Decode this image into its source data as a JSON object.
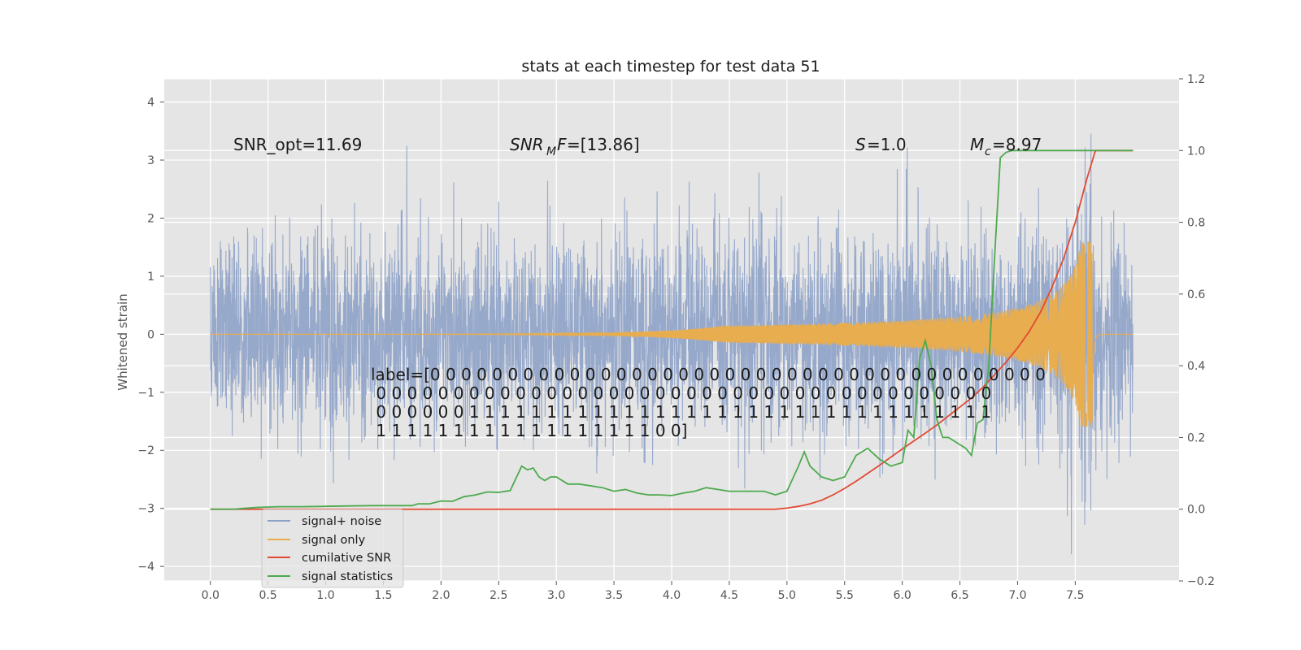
{
  "chart_data": {
    "type": "line",
    "title": "stats at each timestep for test data 51",
    "ylabel": "Whitened strain",
    "xlabel": "",
    "xlim": [
      -0.4,
      8.4
    ],
    "ylim": [
      -4.25,
      4.4
    ],
    "y2lim": [
      -0.2,
      1.2
    ],
    "x_ticks": [
      0.0,
      0.5,
      1.0,
      1.5,
      2.0,
      2.5,
      3.0,
      3.5,
      4.0,
      4.5,
      5.0,
      5.5,
      6.0,
      6.5,
      7.0,
      7.5
    ],
    "y_ticks": [
      4,
      3,
      2,
      1,
      0,
      -1,
      -2,
      -3,
      -4
    ],
    "y2_ticks": [
      1.2,
      1.0,
      0.8,
      0.6,
      0.4,
      0.2,
      0.0,
      -0.2
    ],
    "x_tick_labels": [
      "0.0",
      "0.5",
      "1.0",
      "1.5",
      "2.0",
      "2.5",
      "3.0",
      "3.5",
      "4.0",
      "4.5",
      "5.0",
      "5.5",
      "6.0",
      "6.5",
      "7.0",
      "7.5"
    ],
    "y_tick_labels": [
      "4",
      "3",
      "2",
      "1",
      "0",
      "−1",
      "−2",
      "−3",
      "−4"
    ],
    "y2_tick_labels": [
      "1.2",
      "1.0",
      "0.8",
      "0.6",
      "0.4",
      "0.2",
      "0.0",
      "−0.2"
    ],
    "grid": true,
    "colors": {
      "background": "#e5e5e5",
      "noise": "#8ea2c8",
      "signal": "#e8ad4e",
      "cumulative": "#e24a33",
      "statistics": "#4daa4e"
    },
    "annotations": {
      "snr_opt": "SNR_opt=11.69",
      "snr_mf": "=[13.86]",
      "s": "=1.0",
      "mc": "=8.97"
    },
    "label_text": [
      "label=[0 0 0 0 0 0 0 0 0 0 0 0 0 0 0 0 0 0 0 0 0 0 0 0 0 0 0 0 0 0 0 0 0 0 0 0 0 0 0 0",
      " 0 0 0 0 0 0 0 0 0 0 0 0 0 0 0 0 0 0 0 0 0 0 0 0 0 0 0 0 0 0 0 0 0 0 0 0 0 0 0 0",
      " 0 0 0 0 0 0 1 1 1 1 1 1 1 1 1 1 1 1 1 1 1 1 1 1 1 1 1 1 1 1 1 1 1 1 1 1 1 1 1 1",
      " 1 1 1 1 1 1 1 1 1 1 1 1 1 1 1 1 1 1 0 0]"
    ],
    "series": [
      {
        "name": "signal+ noise",
        "description_values": "white noise, std ~1, spikes to about ±4, x from 0 to 8",
        "x_range": [
          0,
          8
        ],
        "noise_std": 1.0
      },
      {
        "name": "signal only",
        "description_values": "chirp rising from ~0 to ±1.6 at merger near t=7.65, x from 0 to 8",
        "x_range": [
          0,
          8
        ],
        "merger_time": 7.65,
        "peak_amplitude": 1.6
      },
      {
        "name": "cumilative SNR",
        "axis": "right",
        "x": [
          0,
          4.0,
          4.9,
          5.0,
          5.1,
          5.2,
          5.3,
          5.4,
          5.5,
          5.6,
          5.7,
          5.8,
          5.9,
          6.0,
          6.1,
          6.2,
          6.3,
          6.4,
          6.5,
          6.6,
          6.7,
          6.8,
          6.9,
          7.0,
          7.1,
          7.2,
          7.3,
          7.4,
          7.5,
          7.6,
          7.67,
          7.68,
          8.0
        ],
        "y": [
          0,
          0.0,
          0.0,
          0.003,
          0.008,
          0.015,
          0.025,
          0.04,
          0.058,
          0.078,
          0.1,
          0.122,
          0.145,
          0.168,
          0.19,
          0.212,
          0.235,
          0.26,
          0.285,
          0.31,
          0.34,
          0.375,
          0.41,
          0.45,
          0.495,
          0.55,
          0.62,
          0.7,
          0.8,
          0.92,
          0.995,
          1.0,
          1.0
        ]
      },
      {
        "name": "signal statistics",
        "axis": "right",
        "x": [
          0,
          0.2,
          0.4,
          0.6,
          0.8,
          1.0,
          1.2,
          1.4,
          1.6,
          1.75,
          1.8,
          1.9,
          2.0,
          2.1,
          2.2,
          2.3,
          2.4,
          2.5,
          2.6,
          2.7,
          2.75,
          2.8,
          2.85,
          2.9,
          2.95,
          3.0,
          3.1,
          3.2,
          3.3,
          3.4,
          3.5,
          3.6,
          3.7,
          3.8,
          3.9,
          4.0,
          4.1,
          4.2,
          4.3,
          4.4,
          4.5,
          4.6,
          4.7,
          4.8,
          4.9,
          5.0,
          5.1,
          5.15,
          5.2,
          5.3,
          5.4,
          5.5,
          5.6,
          5.7,
          5.8,
          5.9,
          6.0,
          6.05,
          6.1,
          6.15,
          6.2,
          6.25,
          6.3,
          6.35,
          6.4,
          6.5,
          6.55,
          6.6,
          6.65,
          6.7,
          6.75,
          6.8,
          6.85,
          6.9,
          6.95,
          7.0,
          7.1,
          7.3,
          7.5,
          7.7,
          8.0
        ],
        "y": [
          0,
          0.0,
          0.005,
          0.007,
          0.007,
          0.008,
          0.009,
          0.01,
          0.01,
          0.01,
          0.015,
          0.015,
          0.023,
          0.022,
          0.035,
          0.04,
          0.048,
          0.047,
          0.052,
          0.12,
          0.11,
          0.115,
          0.09,
          0.08,
          0.09,
          0.09,
          0.07,
          0.07,
          0.065,
          0.06,
          0.05,
          0.055,
          0.045,
          0.04,
          0.04,
          0.038,
          0.045,
          0.05,
          0.06,
          0.055,
          0.05,
          0.05,
          0.05,
          0.05,
          0.04,
          0.05,
          0.12,
          0.16,
          0.12,
          0.09,
          0.08,
          0.09,
          0.15,
          0.17,
          0.14,
          0.12,
          0.13,
          0.22,
          0.2,
          0.42,
          0.47,
          0.4,
          0.25,
          0.2,
          0.2,
          0.18,
          0.17,
          0.15,
          0.24,
          0.25,
          0.4,
          0.7,
          0.98,
          0.995,
          1.0,
          1.0,
          1.0,
          1.0,
          1.0,
          1.0,
          1.0
        ]
      }
    ],
    "legend": {
      "position": "lower-left",
      "entries": [
        "signal+ noise",
        "signal only",
        "cumilative SNR",
        "signal statistics"
      ]
    }
  }
}
